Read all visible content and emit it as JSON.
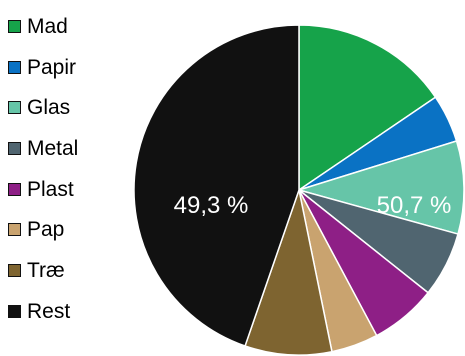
{
  "chart_data": {
    "type": "pie",
    "title": "",
    "legend_position": "left",
    "start_angle": "12 o'clock, clockwise",
    "slices": [
      {
        "label": "Mad",
        "value": 15.5,
        "color": "#16a34a"
      },
      {
        "label": "Papir",
        "value": 4.7,
        "color": "#0a72c4"
      },
      {
        "label": "Glas",
        "value": 9.1,
        "color": "#66c5a8"
      },
      {
        "label": "Metal",
        "value": 6.4,
        "color": "#506570"
      },
      {
        "label": "Plast",
        "value": 6.5,
        "color": "#8e1f86"
      },
      {
        "label": "Pap",
        "value": 4.6,
        "color": "#c9a36f"
      },
      {
        "label": "Træ",
        "value": 8.5,
        "color": "#7e6430"
      },
      {
        "label": "Rest",
        "value": 44.7,
        "color": "#111111"
      }
    ],
    "annotations": [
      {
        "text": "50,7 %",
        "placement": "right, over Metal slice"
      },
      {
        "text": "49,3 %",
        "placement": "left, over Rest slice"
      }
    ]
  }
}
